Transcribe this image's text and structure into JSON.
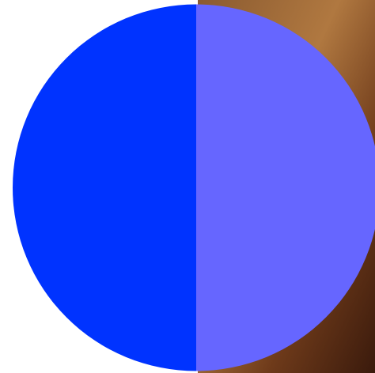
{
  "chart_data": {
    "type": "pie",
    "values": [
      50,
      50
    ],
    "colors": [
      "#6666ff",
      "#0033ff"
    ]
  }
}
